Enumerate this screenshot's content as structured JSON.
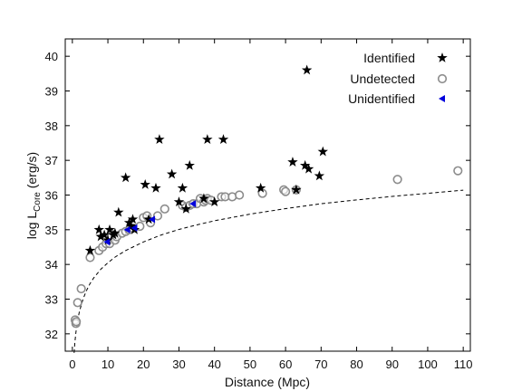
{
  "chart_data": {
    "type": "scatter",
    "xlabel": "Distance (Mpc)",
    "ylabel_main": "log L",
    "ylabel_sub": "Core",
    "ylabel_unit": " (erg/s)",
    "xlim": [
      -2,
      112
    ],
    "ylim": [
      31.5,
      40.5
    ],
    "xticks": [
      0,
      10,
      20,
      30,
      40,
      50,
      60,
      70,
      80,
      90,
      100,
      110
    ],
    "yticks": [
      32,
      33,
      34,
      35,
      36,
      37,
      38,
      39,
      40
    ],
    "legend_position": "top-right",
    "series": [
      {
        "name": "Identified",
        "marker": "star",
        "color": "#000000",
        "x": [
          5,
          7.5,
          8,
          9,
          10,
          10.5,
          11.5,
          12,
          13,
          15,
          16,
          16.5,
          17,
          17.5,
          20.5,
          21.5,
          23.5,
          24.5,
          28,
          30,
          31,
          32,
          33,
          37,
          38,
          40,
          42.5,
          53,
          62,
          63,
          65.5,
          66,
          66.5,
          69.5,
          70.5
        ],
        "y": [
          34.4,
          35.0,
          34.8,
          34.85,
          34.7,
          35.0,
          34.85,
          34.9,
          35.5,
          36.5,
          35.2,
          35.1,
          35.3,
          35.0,
          36.3,
          35.3,
          36.2,
          37.6,
          36.6,
          35.8,
          36.2,
          35.6,
          36.85,
          35.9,
          37.6,
          35.8,
          37.6,
          36.2,
          36.95,
          36.15,
          36.85,
          39.6,
          36.75,
          36.55,
          37.25
        ]
      },
      {
        "name": "Undetected",
        "marker": "circle",
        "color": "#8c8c8c",
        "x": [
          0.8,
          1.0,
          1.1,
          1.5,
          2.5,
          5,
          7.5,
          8.5,
          9.5,
          10.5,
          11,
          12,
          12.5,
          14,
          15,
          16,
          17,
          19,
          20,
          21,
          22,
          24,
          26,
          31,
          32,
          33,
          34,
          35,
          36,
          37,
          37.5,
          38,
          39,
          42,
          43,
          45,
          47,
          53.5,
          59.5,
          60,
          63,
          91.5,
          108.5
        ],
        "y": [
          32.4,
          32.3,
          32.35,
          32.9,
          33.3,
          34.2,
          34.4,
          34.5,
          34.6,
          34.6,
          34.8,
          34.7,
          34.8,
          34.9,
          34.95,
          35.0,
          35.05,
          35.1,
          35.35,
          35.4,
          35.2,
          35.4,
          35.6,
          35.7,
          35.65,
          35.7,
          35.75,
          35.75,
          35.9,
          35.8,
          35.85,
          35.9,
          35.85,
          35.95,
          35.95,
          35.95,
          36.0,
          36.05,
          36.15,
          36.1,
          36.15,
          36.45,
          36.7
        ]
      },
      {
        "name": "Unidentified",
        "marker": "triangle-left",
        "color": "#0000dd",
        "x": [
          9.8,
          15.5,
          17.5,
          22.5,
          34
        ],
        "y": [
          34.65,
          35.0,
          35.05,
          35.3,
          35.75
        ]
      }
    ],
    "fit_curve": {
      "style": "dashed",
      "color": "#000000",
      "x": [
        0.5,
        0.7,
        1,
        1.5,
        2,
        3,
        4,
        5,
        6,
        8,
        10,
        12,
        15,
        20,
        25,
        30,
        35,
        40,
        50,
        60,
        70,
        80,
        90,
        100,
        110
      ],
      "y": [
        31.45,
        31.75,
        32.05,
        32.4,
        32.65,
        33.0,
        33.25,
        33.45,
        33.61,
        33.86,
        34.05,
        34.21,
        34.4,
        34.65,
        34.85,
        35.01,
        35.14,
        35.26,
        35.45,
        35.61,
        35.75,
        35.86,
        35.96,
        36.05,
        36.14
      ]
    }
  }
}
